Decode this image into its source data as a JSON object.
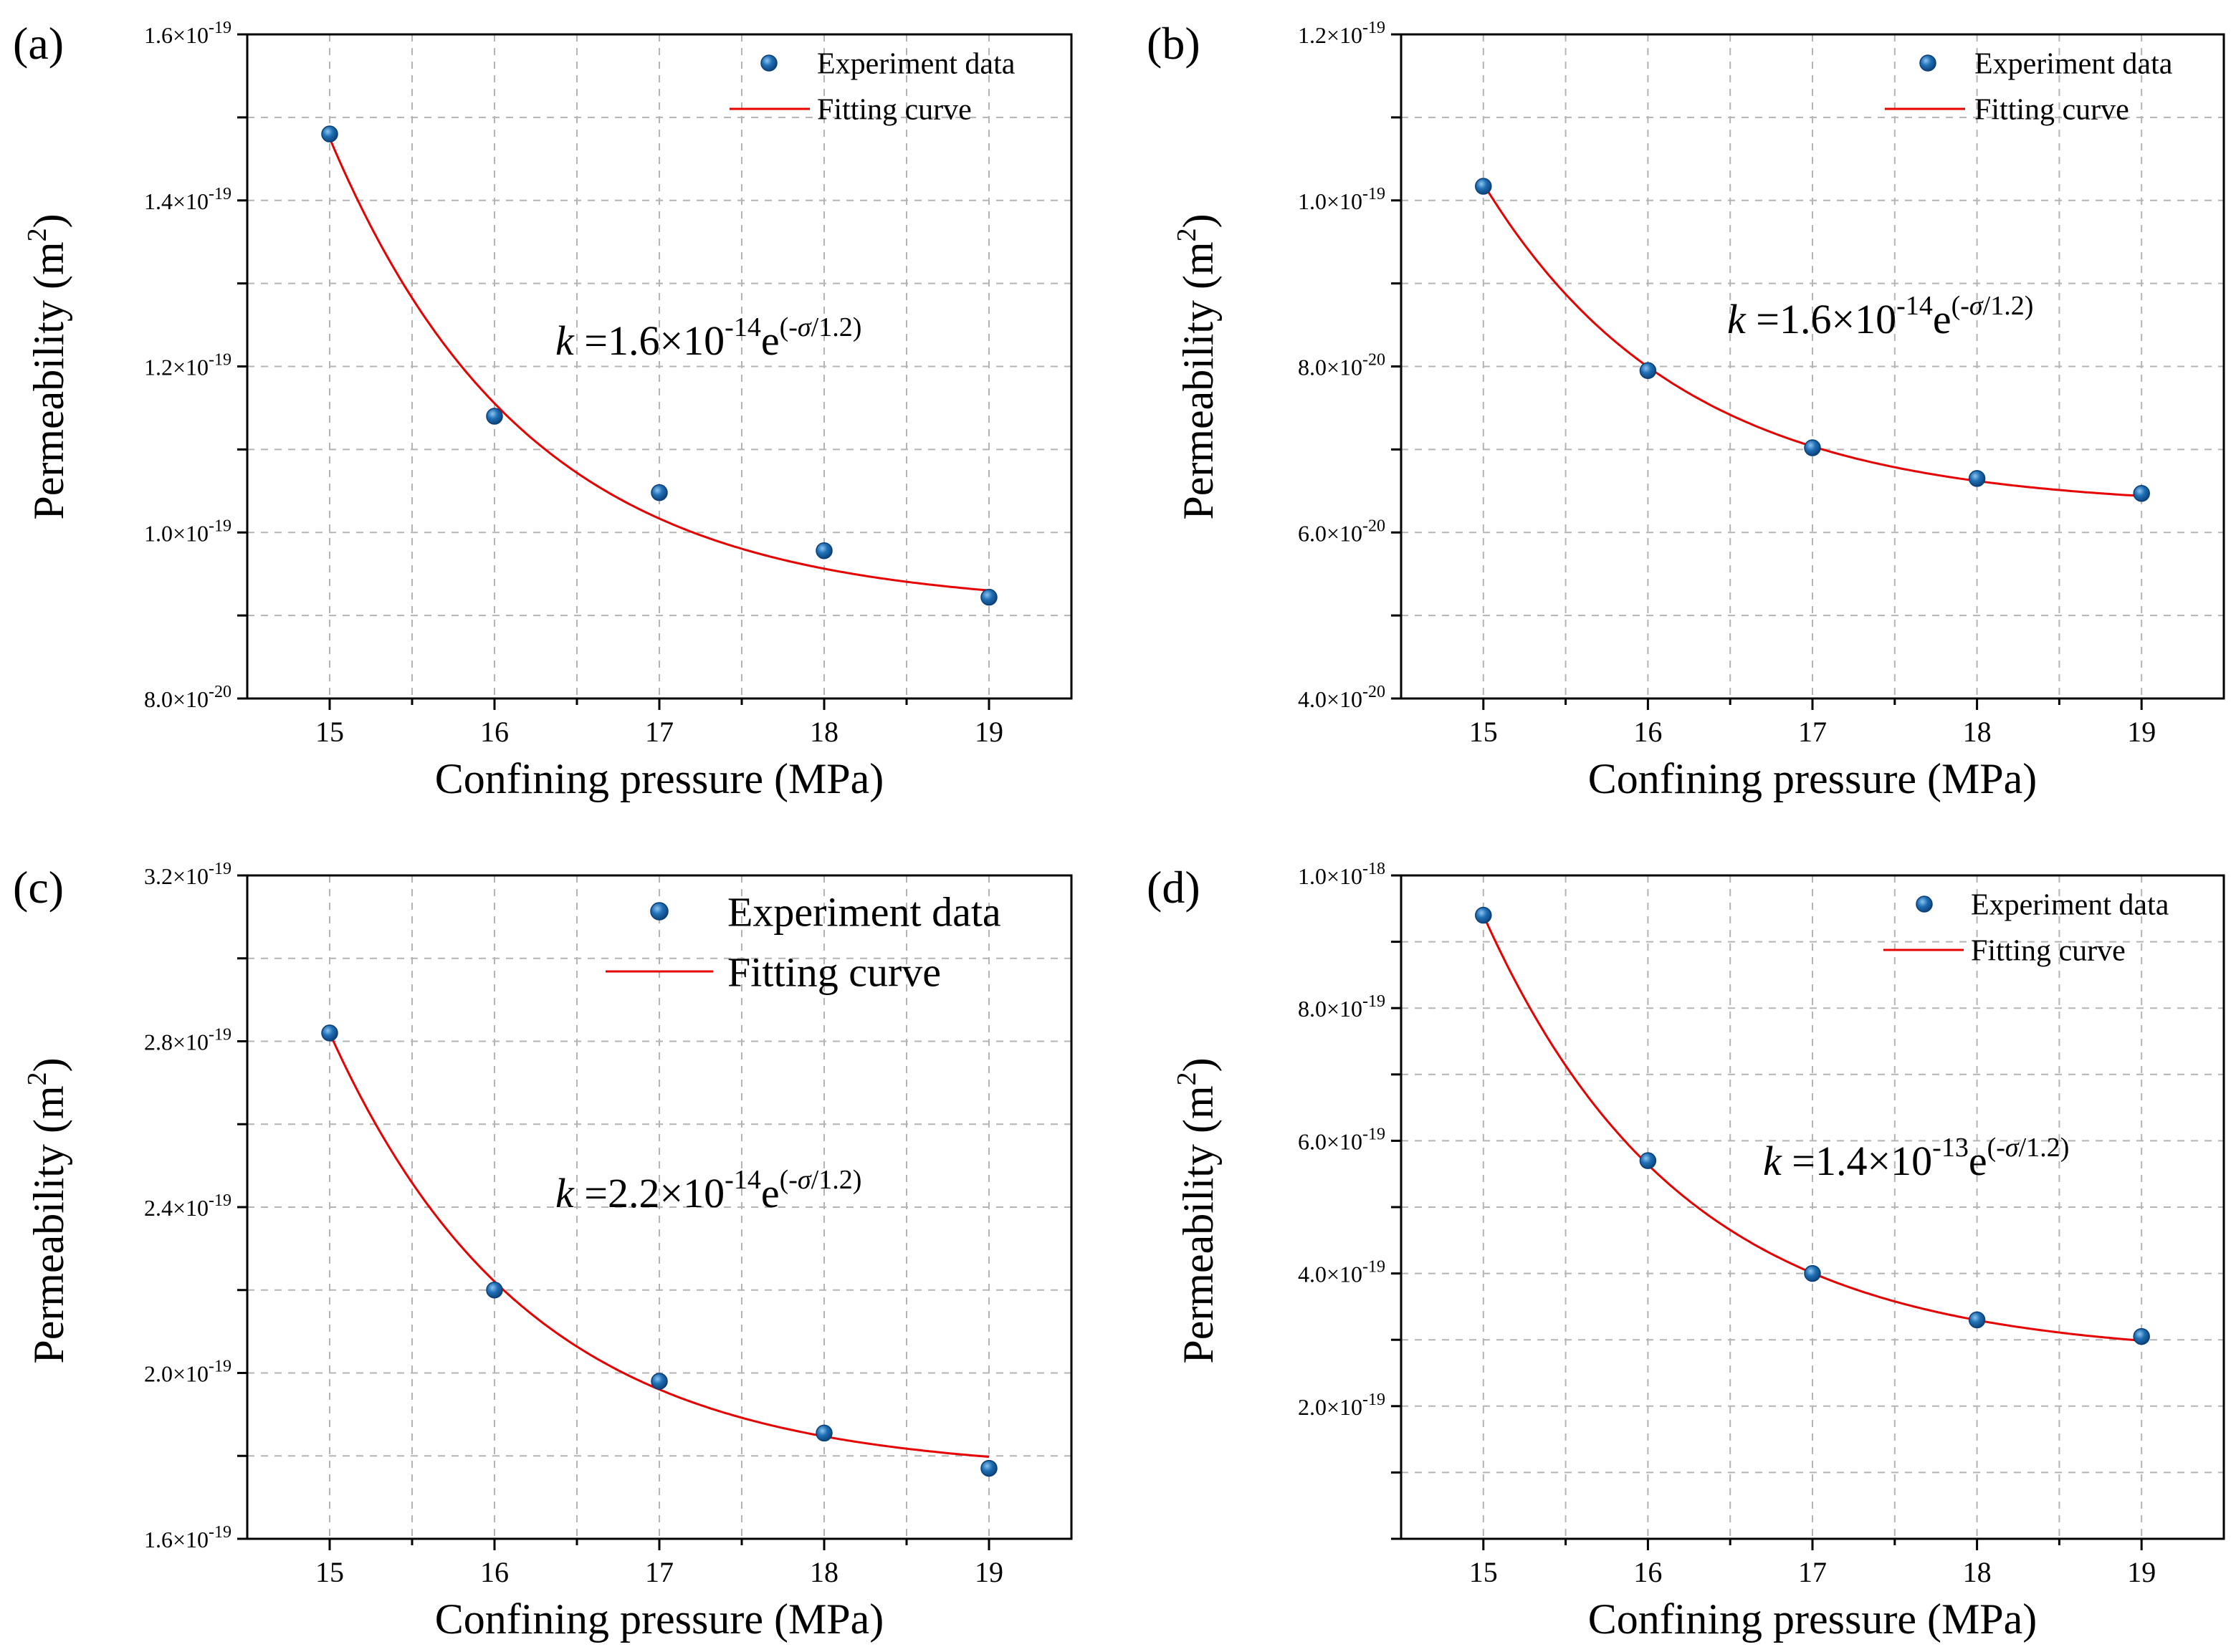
{
  "figure": {
    "accent_colors": {
      "marker": "#1f6fb5",
      "curve": "#e60000",
      "grid": "#b4b4b4"
    }
  },
  "chart_data": [
    {
      "panel": "(a)",
      "type": "scatter",
      "xlabel": "Confining pressure (MPa)",
      "ylabel": "Permeability (m²)",
      "x_ticks": [
        "15",
        "16",
        "17",
        "18",
        "19"
      ],
      "xlim": [
        14.5,
        19.5
      ],
      "ylim": [
        8e-20,
        1.6e-19
      ],
      "y_ticks": [
        {
          "value": 8e-20,
          "mant": "8.0×10",
          "exp": "-20"
        },
        {
          "value": 1e-19,
          "mant": "1.0×10",
          "exp": "-19"
        },
        {
          "value": 1.2e-19,
          "mant": "1.2×10",
          "exp": "-19"
        },
        {
          "value": 1.4e-19,
          "mant": "1.4×10",
          "exp": "-19"
        },
        {
          "value": 1.6e-19,
          "mant": "1.6×10",
          "exp": "-19"
        }
      ],
      "series": [
        {
          "name": "Experiment data",
          "x": [
            15,
            16,
            17,
            18,
            19
          ],
          "y": [
            1.48e-19,
            1.14e-19,
            1.048e-19,
            9.78e-20,
            9.22e-20
          ]
        },
        {
          "name": "Fitting curve",
          "model": "y0 + A·exp(-(x-15)/1.2)",
          "y0": 9.1e-20,
          "A": 5.65e-20,
          "x_range": [
            15,
            19
          ]
        }
      ],
      "equation": {
        "k": "k",
        "mid": " =1.6×10",
        "exp1": "-14",
        "e": "e",
        "exp2a": "(-",
        "sigma": "σ",
        "exp2b": "/1.2)"
      },
      "legend": {
        "scatter": "Experiment data",
        "line": "Fitting curve",
        "placement": "top-right"
      }
    },
    {
      "panel": "(b)",
      "type": "scatter",
      "xlabel": "Confining pressure (MPa)",
      "ylabel": "Permeability (m²)",
      "x_ticks": [
        "15",
        "16",
        "17",
        "18",
        "19"
      ],
      "xlim": [
        14.5,
        19.5
      ],
      "ylim": [
        4e-20,
        1.2e-19
      ],
      "y_ticks": [
        {
          "value": 4e-20,
          "mant": "4.0×10",
          "exp": "-20"
        },
        {
          "value": 6e-20,
          "mant": "6.0×10",
          "exp": "-20"
        },
        {
          "value": 8e-20,
          "mant": "8.0×10",
          "exp": "-20"
        },
        {
          "value": 1e-19,
          "mant": "1.0×10",
          "exp": "-19"
        },
        {
          "value": 1.2e-19,
          "mant": "1.2×10",
          "exp": "-19"
        }
      ],
      "series": [
        {
          "name": "Experiment data",
          "x": [
            15,
            16,
            17,
            18,
            19
          ],
          "y": [
            1.017e-19,
            7.95e-20,
            7.02e-20,
            6.65e-20,
            6.47e-20
          ]
        },
        {
          "name": "Fitting curve",
          "model": "y0 + A·exp(-(x-15)/1.2)",
          "y0": 6.3e-20,
          "A": 3.9e-20,
          "x_range": [
            15,
            19
          ]
        }
      ],
      "equation": {
        "k": "k",
        "mid": " =1.6×10",
        "exp1": "-14",
        "e": "e",
        "exp2a": "(-",
        "sigma": "σ",
        "exp2b": "/1.2)"
      },
      "legend": {
        "scatter": "Experiment data",
        "line": "Fitting curve",
        "placement": "top-right"
      }
    },
    {
      "panel": "(c)",
      "type": "scatter",
      "xlabel": "Confining pressure (MPa)",
      "ylabel": "Permeability (m²)",
      "x_ticks": [
        "15",
        "16",
        "17",
        "18",
        "19"
      ],
      "xlim": [
        14.5,
        19.5
      ],
      "ylim": [
        1.6e-19,
        3.2e-19
      ],
      "y_ticks": [
        {
          "value": 1.6e-19,
          "mant": "1.6×10",
          "exp": "-19"
        },
        {
          "value": 2e-19,
          "mant": "2.0×10",
          "exp": "-19"
        },
        {
          "value": 2.4e-19,
          "mant": "2.4×10",
          "exp": "-19"
        },
        {
          "value": 2.8e-19,
          "mant": "2.8×10",
          "exp": "-19"
        },
        {
          "value": 3.2e-19,
          "mant": "3.2×10",
          "exp": "-19"
        }
      ],
      "series": [
        {
          "name": "Experiment data",
          "x": [
            15,
            16,
            17,
            18,
            19
          ],
          "y": [
            2.82e-19,
            2.2e-19,
            1.98e-19,
            1.855e-19,
            1.77e-19
          ]
        },
        {
          "name": "Fitting curve",
          "model": "y0 + A·exp(-(x-15)/1.2)",
          "y0": 1.76e-19,
          "A": 1.06e-19,
          "x_range": [
            15,
            19
          ]
        }
      ],
      "equation": {
        "k": "k",
        "mid": " =2.2×10",
        "exp1": "-14",
        "e": "e",
        "exp2a": "(-",
        "sigma": "σ",
        "exp2b": "/1.2)"
      },
      "legend": {
        "scatter": "Experiment data",
        "line": "Fitting curve",
        "placement": "top-right"
      }
    },
    {
      "panel": "(d)",
      "type": "scatter",
      "xlabel": "Confining pressure (MPa)",
      "ylabel": "Permeability (m²)",
      "x_ticks": [
        "15",
        "16",
        "17",
        "18",
        "19"
      ],
      "xlim": [
        14.5,
        19.5
      ],
      "ylim": [
        0.0,
        1e-18
      ],
      "y_ticks": [
        {
          "value": 2e-19,
          "mant": "2.0×10",
          "exp": "-19"
        },
        {
          "value": 4e-19,
          "mant": "4.0×10",
          "exp": "-19"
        },
        {
          "value": 6e-19,
          "mant": "6.0×10",
          "exp": "-19"
        },
        {
          "value": 8e-19,
          "mant": "8.0×10",
          "exp": "-19"
        },
        {
          "value": 1e-18,
          "mant": "1.0×10",
          "exp": "-18"
        }
      ],
      "series": [
        {
          "name": "Experiment data",
          "x": [
            15,
            16,
            17,
            18,
            19
          ],
          "y": [
            9.4e-19,
            5.7e-19,
            4e-19,
            3.3e-19,
            3.05e-19
          ]
        },
        {
          "name": "Fitting curve",
          "model": "y0 + A·exp(-(x-15)/1.2)",
          "y0": 2.75e-19,
          "A": 6.65e-19,
          "x_range": [
            15,
            19
          ]
        }
      ],
      "equation": {
        "k": "k",
        "mid": " =1.4×10",
        "exp1": "-13",
        "e": "e",
        "exp2a": "(-",
        "sigma": "σ",
        "exp2b": "/1.2)"
      },
      "legend": {
        "scatter": "Experiment data",
        "line": "Fitting curve",
        "placement": "top-right"
      }
    }
  ]
}
